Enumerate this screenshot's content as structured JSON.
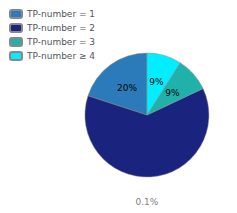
{
  "chart_data": {
    "type": "pie",
    "categories": [
      "TP-number = 1",
      "TP-number = 2",
      "TP-number = 3",
      "TP-number ≥ 4"
    ],
    "values": [
      20,
      62,
      9,
      9
    ],
    "value_labels": [
      "20%",
      null,
      "9%",
      "9%"
    ],
    "data_labels": true,
    "colors": [
      "#2b7bba",
      "#1a237e",
      "#20b2aa",
      "#00eeff"
    ],
    "legend": "upper left",
    "annotation": "0.1%"
  }
}
